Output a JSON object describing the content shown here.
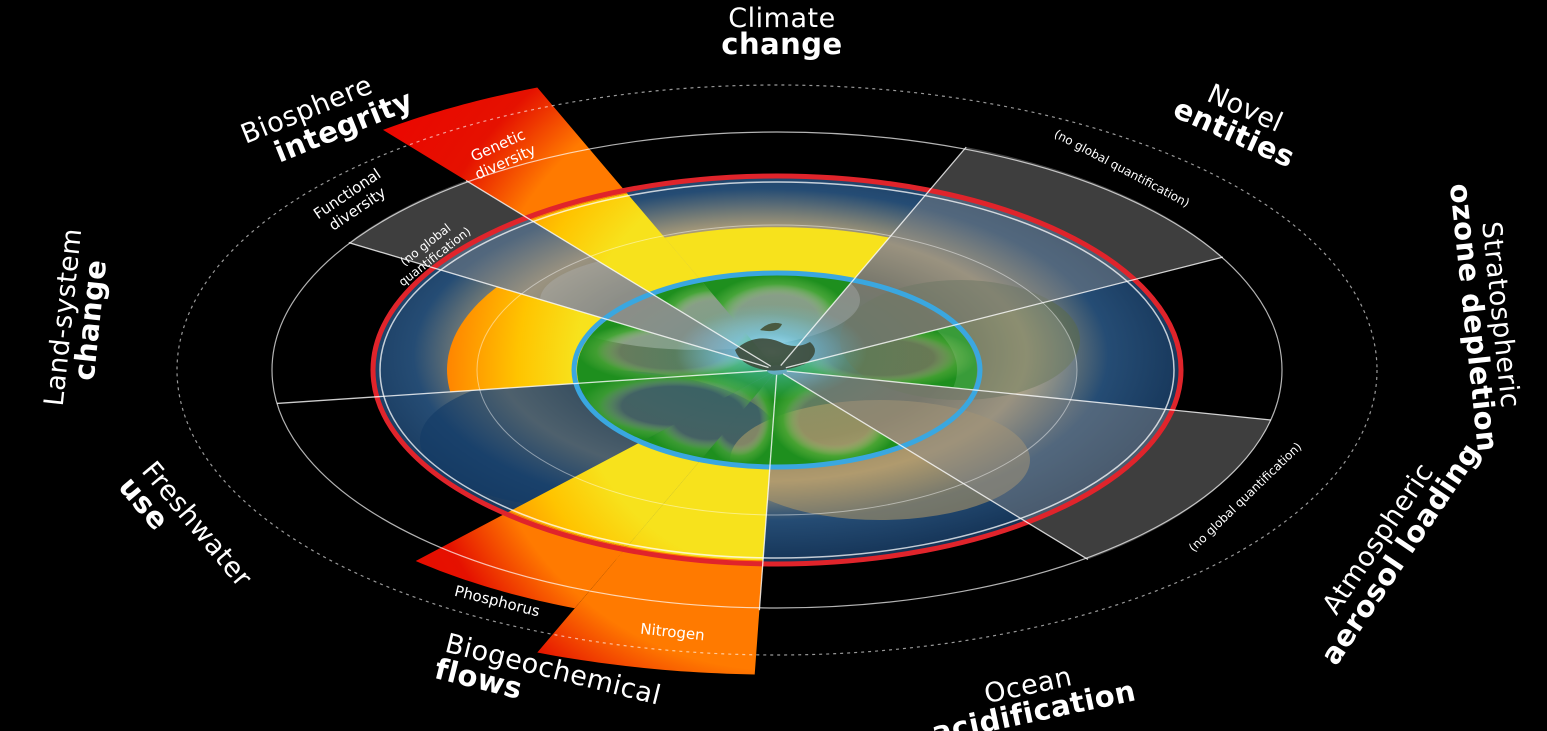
{
  "labels": {
    "climate": {
      "line1": "Climate",
      "line2": "change"
    },
    "novel": {
      "line1": "Novel",
      "line2": "entities"
    },
    "ozone": {
      "line1": "Stratospheric",
      "line2": "ozone depletion"
    },
    "aerosol": {
      "line1": "Atmospheric",
      "line2": "aerosol loading"
    },
    "ocean": {
      "line1": "Ocean",
      "line2": "acidification"
    },
    "biogeo": {
      "line1": "Biogeochemical",
      "line2": "flows"
    },
    "freshwater": {
      "line1": "Freshwater",
      "line2": "use"
    },
    "landsystem": {
      "line1": "Land-system",
      "line2": "change"
    },
    "biosphere": {
      "line1": "Biosphere",
      "line2": "integrity"
    }
  },
  "sublabels": {
    "genetic_1": "Genetic",
    "genetic_2": "diversity",
    "functional_1": "Functional",
    "functional_2": "diversity",
    "fnq_1": "(no global",
    "fnq_2": "quantification)",
    "novel_nq": "(no global quantification)",
    "aerosol_nq": "(no global quantification)",
    "phosphorus": "Phosphorus",
    "nitrogen": "Nitrogen"
  },
  "colors": {
    "background": "#000000",
    "safe_zone": "#2f9e1f",
    "increasing_risk": "#f5c200",
    "high_risk": "#ff7a00",
    "very_high_risk": "#e10600",
    "safe_boundary_ring": "#3aa7e0",
    "outer_boundary_ring": "#e0242b"
  },
  "icons": {
    "globe": "earth-globe-icon"
  }
}
